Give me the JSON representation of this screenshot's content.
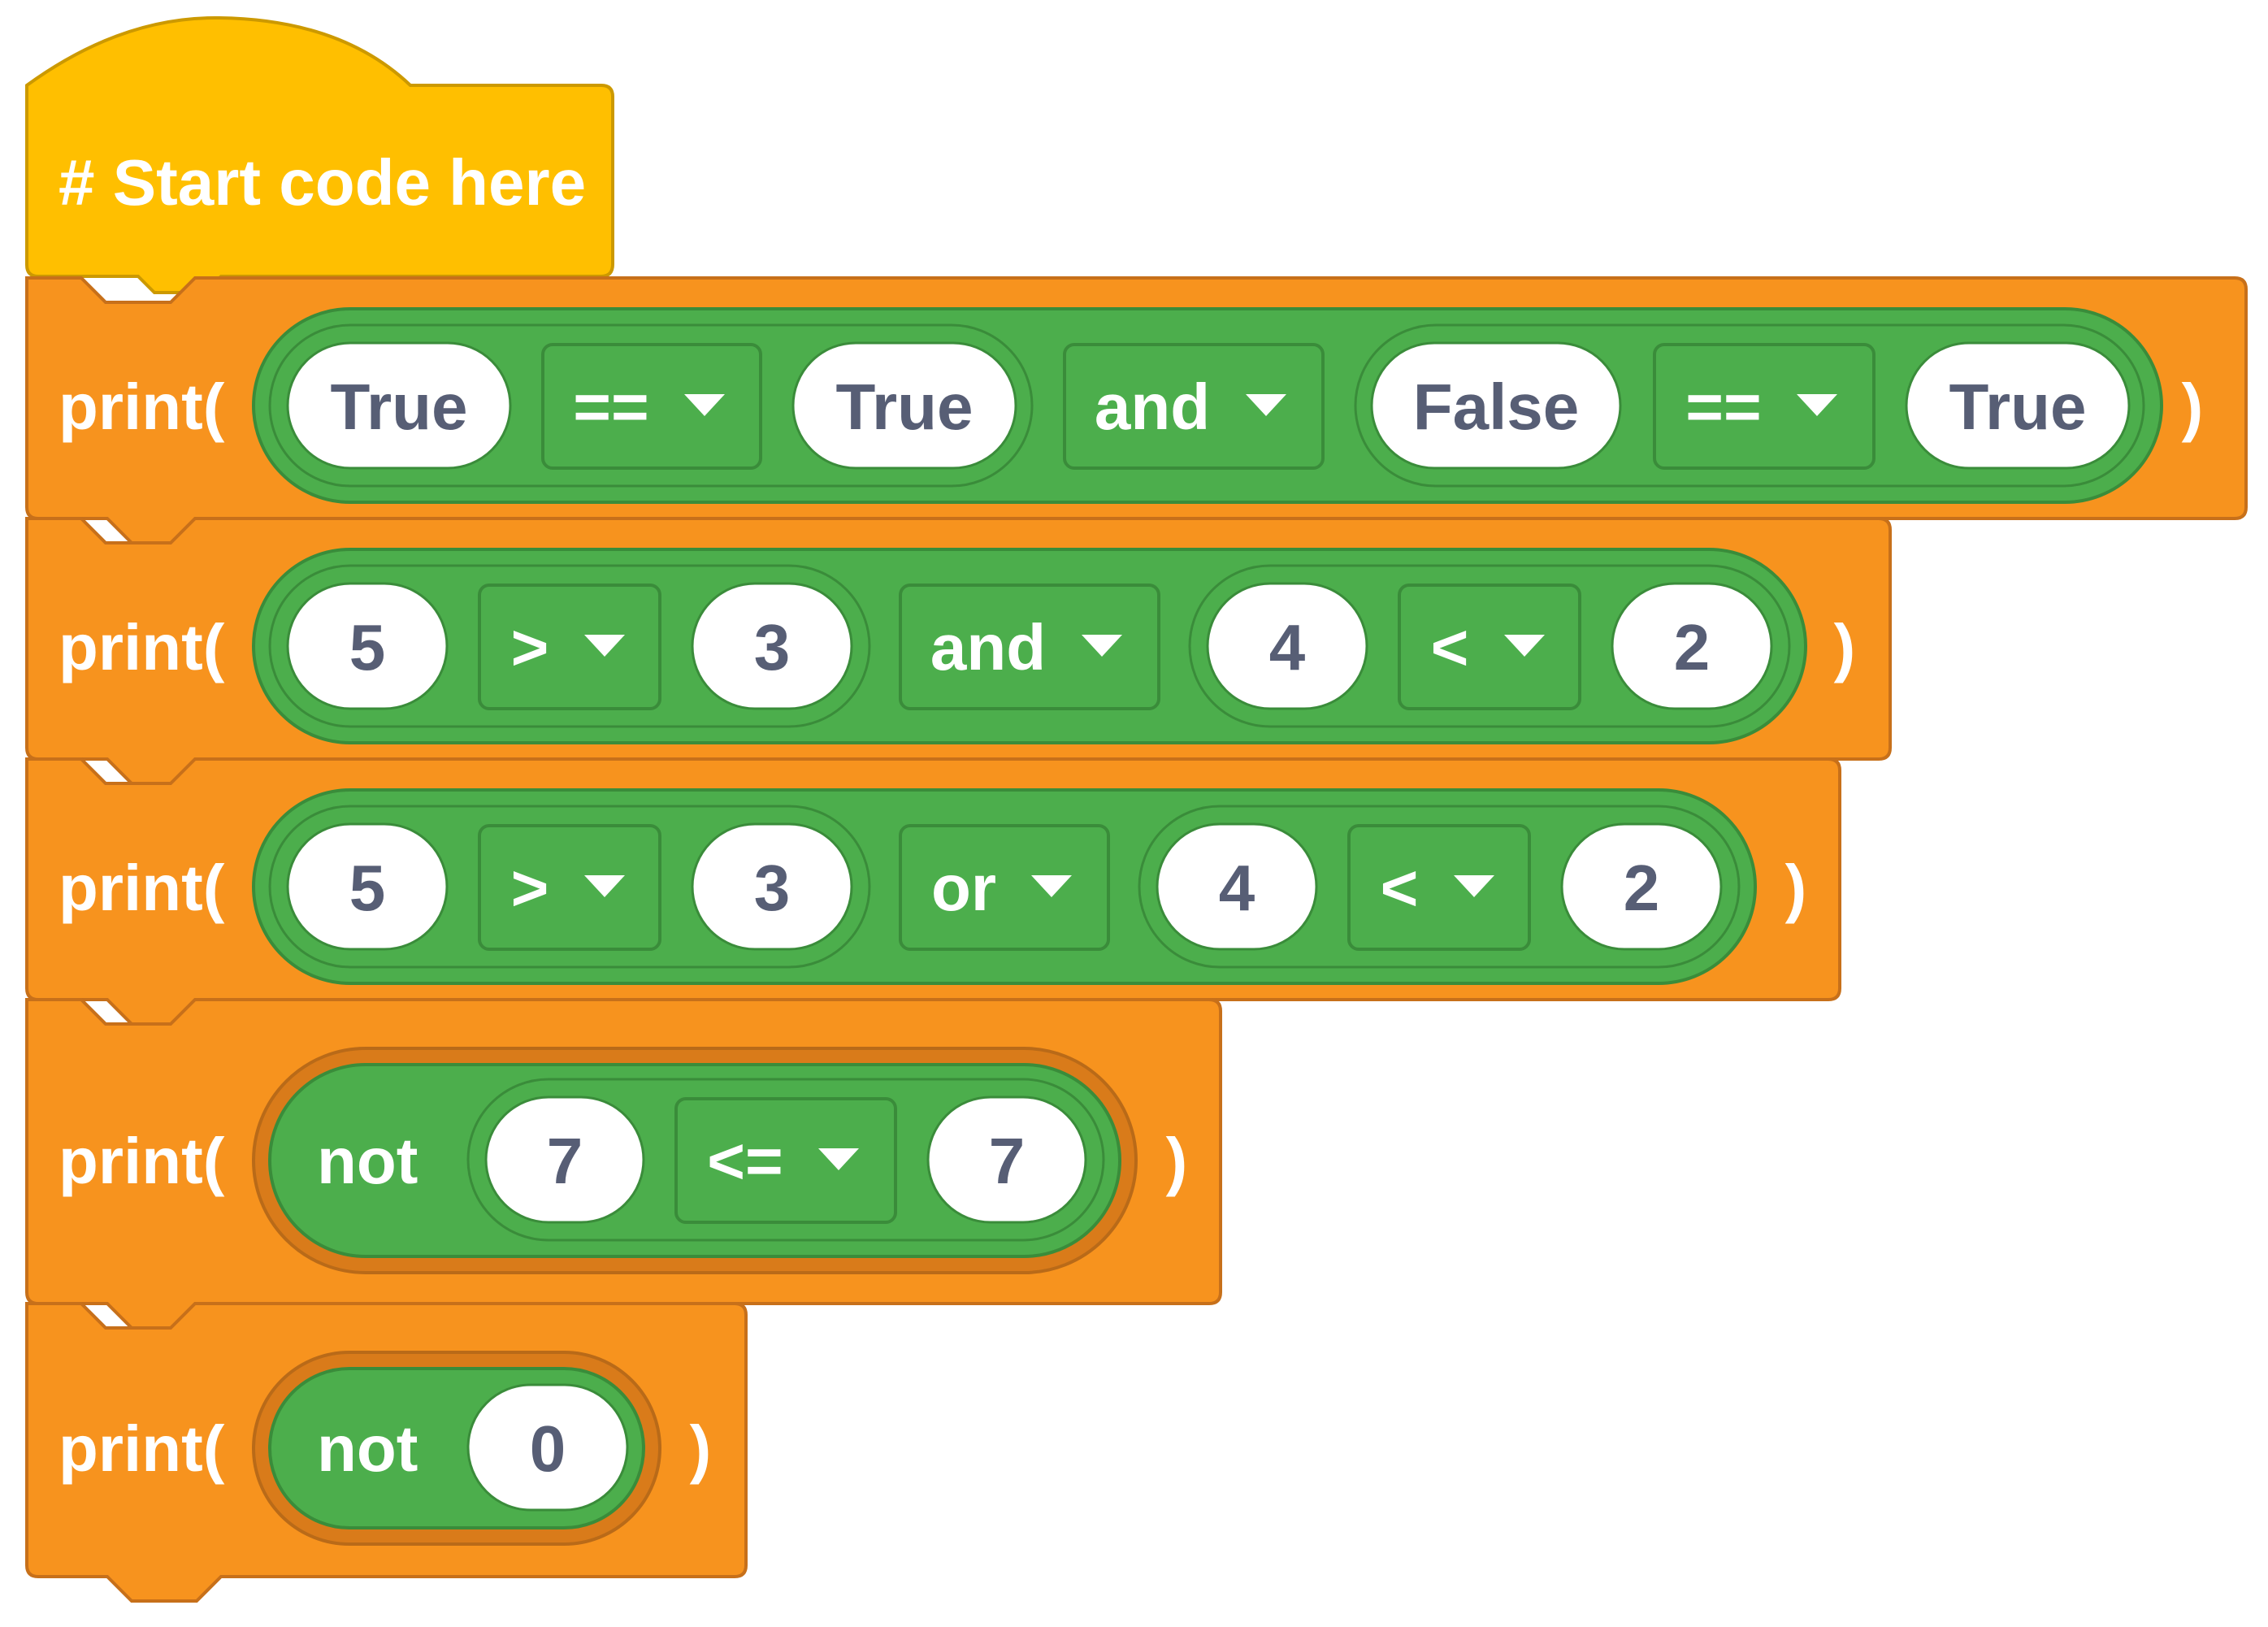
{
  "hat_block": {
    "label": "# Start code here"
  },
  "print_blocks": [
    {
      "prefix": "print(",
      "suffix": ")",
      "parts": [
        {
          "kind": "value",
          "text": "True"
        },
        {
          "kind": "dropdown",
          "text": "=="
        },
        {
          "kind": "value",
          "text": "True"
        },
        {
          "kind": "dropdown",
          "text": "and"
        },
        {
          "kind": "value",
          "text": "False"
        },
        {
          "kind": "dropdown",
          "text": "=="
        },
        {
          "kind": "value",
          "text": "True"
        }
      ]
    },
    {
      "prefix": "print(",
      "suffix": ")",
      "parts": [
        {
          "kind": "value",
          "text": "5"
        },
        {
          "kind": "dropdown",
          "text": ">"
        },
        {
          "kind": "value",
          "text": "3"
        },
        {
          "kind": "dropdown",
          "text": "and"
        },
        {
          "kind": "value",
          "text": "4"
        },
        {
          "kind": "dropdown",
          "text": "<"
        },
        {
          "kind": "value",
          "text": "2"
        }
      ]
    },
    {
      "prefix": "print(",
      "suffix": ")",
      "parts": [
        {
          "kind": "value",
          "text": "5"
        },
        {
          "kind": "dropdown",
          "text": ">"
        },
        {
          "kind": "value",
          "text": "3"
        },
        {
          "kind": "dropdown",
          "text": "or"
        },
        {
          "kind": "value",
          "text": "4"
        },
        {
          "kind": "dropdown",
          "text": "<"
        },
        {
          "kind": "value",
          "text": "2"
        }
      ]
    },
    {
      "prefix": "print(",
      "suffix": ")",
      "parts": [
        {
          "kind": "keyword",
          "text": "not"
        },
        {
          "kind": "value",
          "text": "7"
        },
        {
          "kind": "dropdown",
          "text": "<="
        },
        {
          "kind": "value",
          "text": "7"
        }
      ]
    },
    {
      "prefix": "print(",
      "suffix": ")",
      "parts": [
        {
          "kind": "keyword",
          "text": "not"
        },
        {
          "kind": "value",
          "text": "0"
        }
      ]
    }
  ],
  "colors": {
    "hat": "#ffbf00",
    "hat_border": "#cc9900",
    "print_block": "#f7931e",
    "print_border": "#c7701a",
    "boolean_block": "#4cae4c",
    "boolean_border": "#3a8c3a",
    "value_text": "#575e75"
  },
  "icons": {
    "dropdown_arrow": "caret-down-icon"
  }
}
